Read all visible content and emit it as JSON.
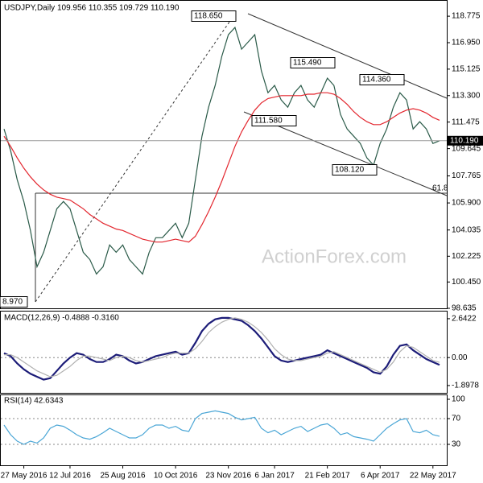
{
  "chart_data": [
    {
      "type": "line",
      "title": "USDJPY,Daily  109.956 110.355 109.729 110.190",
      "watermark": "ActionForex.com",
      "last_label": "110.190",
      "annotations": [
        "118.650",
        "115.490",
        "114.360",
        "111.580",
        "108.120",
        "8.970",
        "61.8"
      ],
      "categories": [
        null,
        null,
        null,
        "27 May 2016",
        null,
        null,
        null,
        null,
        null,
        null,
        "12 Jul 2016",
        null,
        null,
        null,
        null,
        null,
        null,
        null,
        "25 Aug 2016",
        null,
        null,
        null,
        null,
        null,
        null,
        null,
        "10 Oct 2016",
        null,
        null,
        null,
        null,
        null,
        null,
        null,
        "23 Nov 2016",
        null,
        null,
        null,
        null,
        null,
        null,
        "6 Jan 2017",
        null,
        null,
        null,
        null,
        null,
        null,
        null,
        "21 Feb 2017",
        null,
        null,
        null,
        null,
        null,
        null,
        null,
        "6 Apr 2017",
        null,
        null,
        null,
        null,
        null,
        null,
        null,
        "22 May 2017",
        null
      ],
      "series": [
        {
          "color": "#2a5a48",
          "values": [
            111.0,
            109.5,
            107.5,
            106.0,
            104.0,
            101.5,
            102.5,
            104.0,
            105.5,
            106.0,
            105.5,
            104.0,
            102.5,
            102.0,
            101.0,
            101.5,
            103.0,
            102.5,
            103.0,
            102.0,
            101.5,
            101.0,
            102.5,
            103.5,
            103.5,
            104.0,
            104.5,
            103.5,
            104.5,
            107.5,
            110.5,
            112.5,
            114.0,
            116.0,
            117.5,
            118.0,
            116.5,
            117.0,
            117.5,
            115.0,
            113.5,
            114.0,
            113.0,
            112.5,
            113.5,
            114.0,
            113.0,
            112.5,
            113.5,
            114.5,
            114.0,
            112.0,
            111.0,
            110.5,
            110.0,
            109.0,
            108.5,
            110.0,
            111.0,
            112.5,
            113.5,
            113.0,
            111.0,
            111.5,
            111.0,
            110.0,
            110.19
          ]
        },
        {
          "color": "#e3262e",
          "values": [
            110.5,
            109.8,
            109.0,
            108.3,
            107.7,
            107.2,
            106.8,
            106.5,
            106.3,
            106.2,
            106.1,
            105.8,
            105.5,
            105.1,
            104.8,
            104.5,
            104.3,
            104.1,
            104.0,
            103.8,
            103.6,
            103.4,
            103.3,
            103.2,
            103.2,
            103.3,
            103.4,
            103.3,
            103.2,
            103.6,
            104.4,
            105.3,
            106.3,
            107.4,
            108.6,
            109.8,
            110.8,
            111.6,
            112.3,
            112.8,
            113.1,
            113.2,
            113.3,
            113.3,
            113.3,
            113.3,
            113.4,
            113.4,
            113.5,
            113.5,
            113.4,
            113.1,
            112.7,
            112.2,
            111.8,
            111.5,
            111.3,
            111.3,
            111.5,
            111.8,
            112.1,
            112.3,
            112.4,
            112.3,
            112.1,
            111.8,
            111.6
          ]
        }
      ],
      "ylim": [
        98.635,
        119.78
      ],
      "yticks": [
        {
          "value": 118.775,
          "label": "118.775"
        },
        {
          "value": 116.95,
          "label": "116.950"
        },
        {
          "value": 115.125,
          "label": "115.125"
        },
        {
          "value": 113.3,
          "label": "113.300"
        },
        {
          "value": 111.475,
          "label": "111.475"
        },
        {
          "value": 109.645,
          "label": "109.645"
        },
        {
          "value": 107.765,
          "label": "107.765"
        },
        {
          "value": 105.9,
          "label": "105.900"
        },
        {
          "value": 104.035,
          "label": "104.035"
        },
        {
          "value": 102.225,
          "label": "102.225"
        },
        {
          "value": 100.45,
          "label": "100.450"
        },
        {
          "value": 98.635,
          "label": "98.635"
        }
      ]
    },
    {
      "type": "line",
      "title": "MACD(12,26,9) -0.4888 -0.3160",
      "series": [
        {
          "color": "#1c1c78",
          "values": [
            0.3,
            0.1,
            -0.4,
            -0.8,
            -1.1,
            -1.3,
            -1.5,
            -1.4,
            -0.9,
            -0.4,
            0.0,
            0.3,
            0.2,
            -0.1,
            -0.3,
            -0.3,
            -0.1,
            0.2,
            0.1,
            -0.2,
            -0.4,
            -0.3,
            -0.1,
            0.1,
            0.2,
            0.3,
            0.4,
            0.2,
            0.3,
            1.0,
            1.8,
            2.3,
            2.6,
            2.7,
            2.7,
            2.6,
            2.5,
            2.2,
            1.8,
            1.3,
            0.7,
            0.1,
            -0.2,
            -0.3,
            -0.2,
            -0.1,
            0.0,
            0.1,
            0.2,
            0.5,
            0.3,
            0.1,
            -0.1,
            -0.3,
            -0.5,
            -0.7,
            -1.0,
            -1.1,
            -0.6,
            0.2,
            0.8,
            0.9,
            0.5,
            0.2,
            -0.1,
            -0.3,
            -0.49
          ]
        },
        {
          "color": "#b0b0b0",
          "values": [
            0.2,
            0.2,
            0.0,
            -0.3,
            -0.6,
            -0.9,
            -1.1,
            -1.3,
            -1.2,
            -0.9,
            -0.6,
            -0.2,
            0.1,
            0.1,
            0.0,
            -0.1,
            -0.2,
            0.0,
            0.1,
            0.0,
            -0.2,
            -0.3,
            -0.2,
            -0.1,
            0.0,
            0.2,
            0.3,
            0.3,
            0.3,
            0.6,
            1.1,
            1.7,
            2.1,
            2.4,
            2.6,
            2.7,
            2.6,
            2.4,
            2.1,
            1.7,
            1.2,
            0.6,
            0.2,
            -0.1,
            -0.2,
            -0.2,
            -0.1,
            0.0,
            0.1,
            0.3,
            0.4,
            0.2,
            0.0,
            -0.2,
            -0.4,
            -0.6,
            -0.8,
            -1.0,
            -0.8,
            -0.3,
            0.4,
            0.8,
            0.7,
            0.4,
            0.1,
            -0.2,
            -0.32
          ]
        }
      ],
      "ylim": [
        -2.45,
        3.13
      ],
      "yticks": [
        2.6422,
        {
          "value": 0,
          "label": "0.00"
        },
        -1.8978
      ],
      "levels": [
        0
      ]
    },
    {
      "type": "line",
      "title": "RSI(14) 42.6343",
      "series": [
        {
          "color": "#4aa6d6",
          "values": [
            60,
            45,
            35,
            30,
            35,
            32,
            40,
            55,
            60,
            58,
            52,
            45,
            40,
            38,
            42,
            48,
            55,
            50,
            45,
            40,
            40,
            45,
            55,
            60,
            60,
            55,
            58,
            52,
            50,
            70,
            78,
            80,
            82,
            80,
            78,
            72,
            68,
            70,
            72,
            55,
            48,
            52,
            45,
            50,
            55,
            58,
            50,
            55,
            60,
            62,
            55,
            45,
            48,
            42,
            40,
            38,
            35,
            45,
            55,
            62,
            68,
            70,
            50,
            48,
            52,
            45,
            42.63
          ]
        }
      ],
      "ylim": [
        -2.5,
        106.25
      ],
      "yticks": [
        100,
        70,
        30
      ],
      "levels": [
        70,
        30
      ]
    }
  ]
}
